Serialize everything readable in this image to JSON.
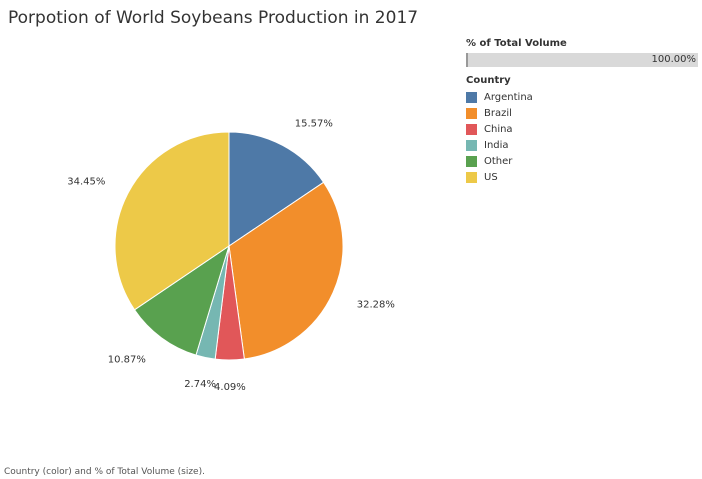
{
  "title": "Porpotion of World Soybeans Production in 2017",
  "size_legend": {
    "label": "% of Total Volume",
    "value_label": "100.00%"
  },
  "color_legend": {
    "label": "Country"
  },
  "caption": "Country (color) and % of Total Volume (size).",
  "chart_data": {
    "type": "pie",
    "slices": [
      {
        "label": "Argentina",
        "value": 15.57,
        "value_label": "15.57%",
        "color": "#4E79A7"
      },
      {
        "label": "Brazil",
        "value": 32.28,
        "value_label": "32.28%",
        "color": "#F28E2B"
      },
      {
        "label": "China",
        "value": 4.09,
        "value_label": "4.09%",
        "color": "#E15759"
      },
      {
        "label": "India",
        "value": 2.74,
        "value_label": "2.74%",
        "color": "#76B7B2"
      },
      {
        "label": "Other",
        "value": 10.87,
        "value_label": "10.87%",
        "color": "#59A14F"
      },
      {
        "label": "US",
        "value": 34.45,
        "value_label": "34.45%",
        "color": "#EDC948"
      }
    ]
  }
}
